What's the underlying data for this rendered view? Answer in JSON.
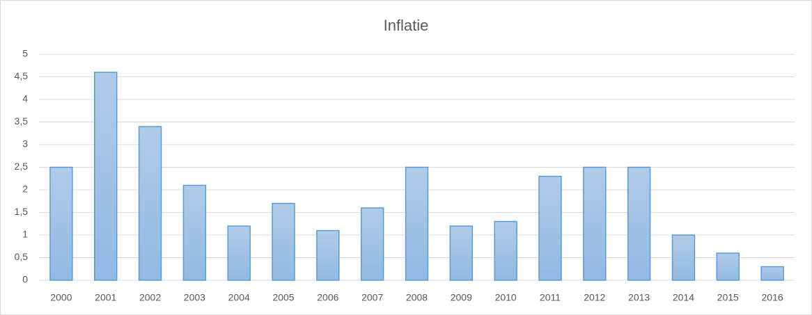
{
  "chart_data": {
    "type": "bar",
    "title": "Inflatie",
    "categories": [
      "2000",
      "2001",
      "2002",
      "2003",
      "2004",
      "2005",
      "2006",
      "2007",
      "2008",
      "2009",
      "2010",
      "2011",
      "2012",
      "2013",
      "2014",
      "2015",
      "2016"
    ],
    "values": [
      2.5,
      4.6,
      3.4,
      2.1,
      1.2,
      1.7,
      1.1,
      1.6,
      2.5,
      1.2,
      1.3,
      2.3,
      2.5,
      2.5,
      1.0,
      0.6,
      0.3
    ],
    "color": "#5b9bd5",
    "ylim": [
      0,
      5
    ],
    "yticks": [
      0,
      {
        "value": 0.5,
        "label": "0,5"
      },
      1,
      {
        "value": 1.5,
        "label": "1,5"
      },
      2,
      {
        "value": 2.5,
        "label": "2,5"
      },
      3,
      {
        "value": 3.5,
        "label": "3,5"
      },
      4,
      {
        "value": 4.5,
        "label": "4,5"
      },
      5
    ],
    "grid": true
  }
}
